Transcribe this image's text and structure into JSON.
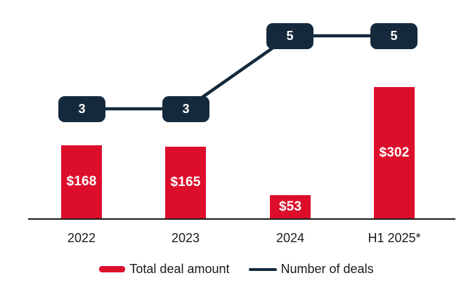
{
  "chart_data": {
    "type": "bar",
    "title": "",
    "categories": [
      "2022",
      "2023",
      "2024",
      "H1 2025*"
    ],
    "series": [
      {
        "name": "Total deal amount",
        "type": "bar",
        "values": [
          168,
          165,
          53,
          302
        ],
        "labels": [
          "$168",
          "$165",
          "$53",
          "$302"
        ],
        "color": "#dc0e2c"
      },
      {
        "name": "Number of deals",
        "type": "line",
        "values": [
          3,
          3,
          5,
          5
        ],
        "labels": [
          "3",
          "3",
          "5",
          "5"
        ],
        "color": "#14293c"
      }
    ],
    "xlabel": "",
    "ylabel": "",
    "grid": false,
    "legend_position": "bottom",
    "axis": {
      "baseline_visible": true,
      "baseline_color": "#1a1a1a"
    }
  },
  "colors": {
    "background": "#ffffff",
    "bar_red": "#dc0e2c",
    "line_navy": "#14293c",
    "text": "#1a1a1a",
    "value_label_text": "#ffffff"
  }
}
